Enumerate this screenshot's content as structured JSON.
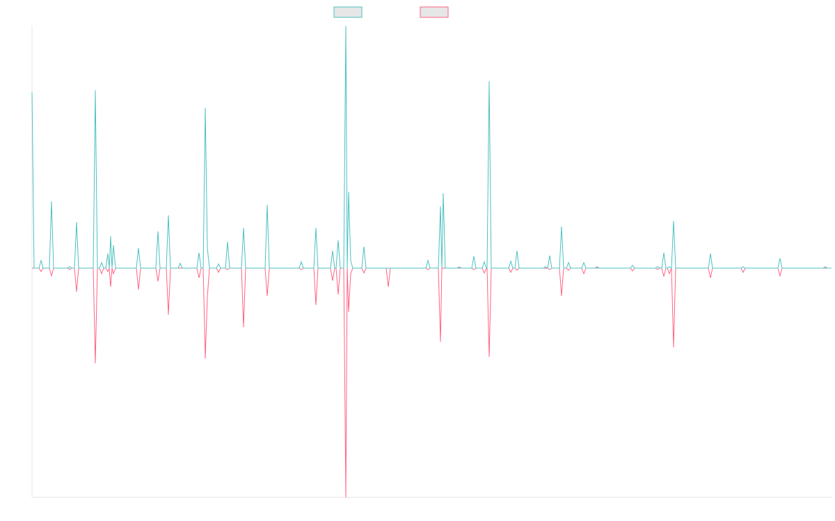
{
  "chart_data": {
    "type": "line",
    "x": [
      0,
      3,
      10,
      13,
      16,
      25,
      28,
      31,
      51,
      54,
      57,
      61,
      64,
      67,
      88,
      91,
      94,
      97,
      100,
      103,
      106,
      109,
      111,
      113,
      115,
      117,
      120,
      150,
      153,
      156,
      178,
      181,
      184,
      193,
      196,
      199,
      210,
      213,
      216,
      237,
      240,
      243,
      246,
      249,
      252,
      255,
      265,
      268,
      271,
      278,
      281,
      284,
      301,
      304,
      307,
      335,
      338,
      341,
      384,
      387,
      390,
      405,
      408,
      411,
      429,
      432,
      435,
      437,
      440,
      443,
      448,
      451,
      453,
      455,
      458,
      461,
      474,
      477,
      480,
      509,
      512,
      515,
      566,
      569,
      572,
      584,
      587,
      589,
      591,
      594,
      611,
      614,
      617,
      632,
      635,
      638,
      647,
      650,
      653,
      654,
      657,
      660,
      685,
      688,
      691,
      694,
      697,
      700,
      735,
      738,
      741,
      744,
      747,
      758,
      761,
      764,
      768,
      771,
      774,
      790,
      793,
      796,
      809,
      812,
      815,
      860,
      863,
      866,
      896,
      899,
      902,
      905,
      908,
      911,
      913,
      916,
      919,
      922,
      925,
      972,
      975,
      978,
      1019,
      1022,
      1025,
      1072,
      1075,
      1078,
      1137,
      1140,
      1143,
      1149
    ],
    "series": [
      {
        "color": "#ff6384",
        "values": [
          0,
          0,
          0,
          -5,
          0,
          0,
          -11,
          0,
          0,
          -2,
          0,
          0,
          -34,
          0,
          0,
          -137,
          0,
          0,
          -8,
          0,
          0,
          -5,
          0,
          -27,
          0,
          -8,
          0,
          0,
          -31,
          0,
          0,
          -19,
          0,
          0,
          -67,
          0,
          0,
          0,
          0,
          0,
          -14,
          0,
          0,
          -130,
          -42,
          0,
          0,
          -6,
          0,
          0,
          -2,
          0,
          0,
          -85,
          0,
          0,
          -40,
          0,
          0,
          -2,
          0,
          0,
          -53,
          0,
          0,
          -18,
          0,
          0,
          -38,
          0,
          0,
          -330,
          0,
          -63,
          -8,
          0,
          0,
          -7,
          0,
          0,
          -27,
          0,
          0,
          -2,
          0,
          0,
          -106,
          0,
          0,
          0,
          0,
          0,
          0,
          0,
          -2,
          0,
          0,
          -7,
          0,
          0,
          -128,
          0,
          0,
          -6,
          0,
          0,
          -3,
          0,
          0,
          0,
          0,
          -2,
          0,
          0,
          -40,
          0,
          0,
          -3,
          0,
          0,
          -8,
          0,
          0,
          0,
          0,
          0,
          -4,
          0,
          0,
          -2,
          0,
          0,
          -12,
          0,
          0,
          -8,
          0,
          -114,
          0,
          0,
          -14,
          0,
          0,
          -6,
          0,
          0,
          -11,
          0,
          0,
          0,
          0,
          0
        ]
      },
      {
        "color": "#4bc0c0",
        "values": [
          253,
          0,
          0,
          11,
          0,
          0,
          96,
          0,
          0,
          2,
          0,
          0,
          66,
          0,
          0,
          256,
          0,
          0,
          8,
          0,
          0,
          21,
          0,
          46,
          0,
          33,
          0,
          0,
          29,
          0,
          0,
          53,
          0,
          0,
          76,
          0,
          0,
          7,
          0,
          0,
          22,
          0,
          0,
          231,
          29,
          0,
          0,
          6,
          0,
          0,
          38,
          0,
          0,
          58,
          0,
          0,
          91,
          0,
          0,
          9,
          0,
          0,
          58,
          0,
          0,
          25,
          0,
          0,
          40,
          0,
          0,
          349,
          0,
          110,
          11,
          0,
          0,
          31,
          0,
          0,
          0,
          0,
          0,
          11,
          0,
          0,
          89,
          0,
          108,
          0,
          0,
          2,
          0,
          0,
          17,
          0,
          0,
          9,
          0,
          0,
          269,
          0,
          0,
          10,
          0,
          0,
          25,
          0,
          0,
          2,
          0,
          18,
          0,
          0,
          60,
          0,
          0,
          8,
          0,
          0,
          8,
          0,
          0,
          2,
          0,
          0,
          4,
          0,
          0,
          2,
          0,
          0,
          22,
          0,
          0,
          2,
          0,
          68,
          0,
          0,
          21,
          0,
          0,
          2,
          0,
          0,
          14,
          0,
          0,
          2,
          0,
          0
        ]
      }
    ],
    "xlim": [
      0,
      1149
    ],
    "ylim": [
      -330,
      349
    ]
  }
}
